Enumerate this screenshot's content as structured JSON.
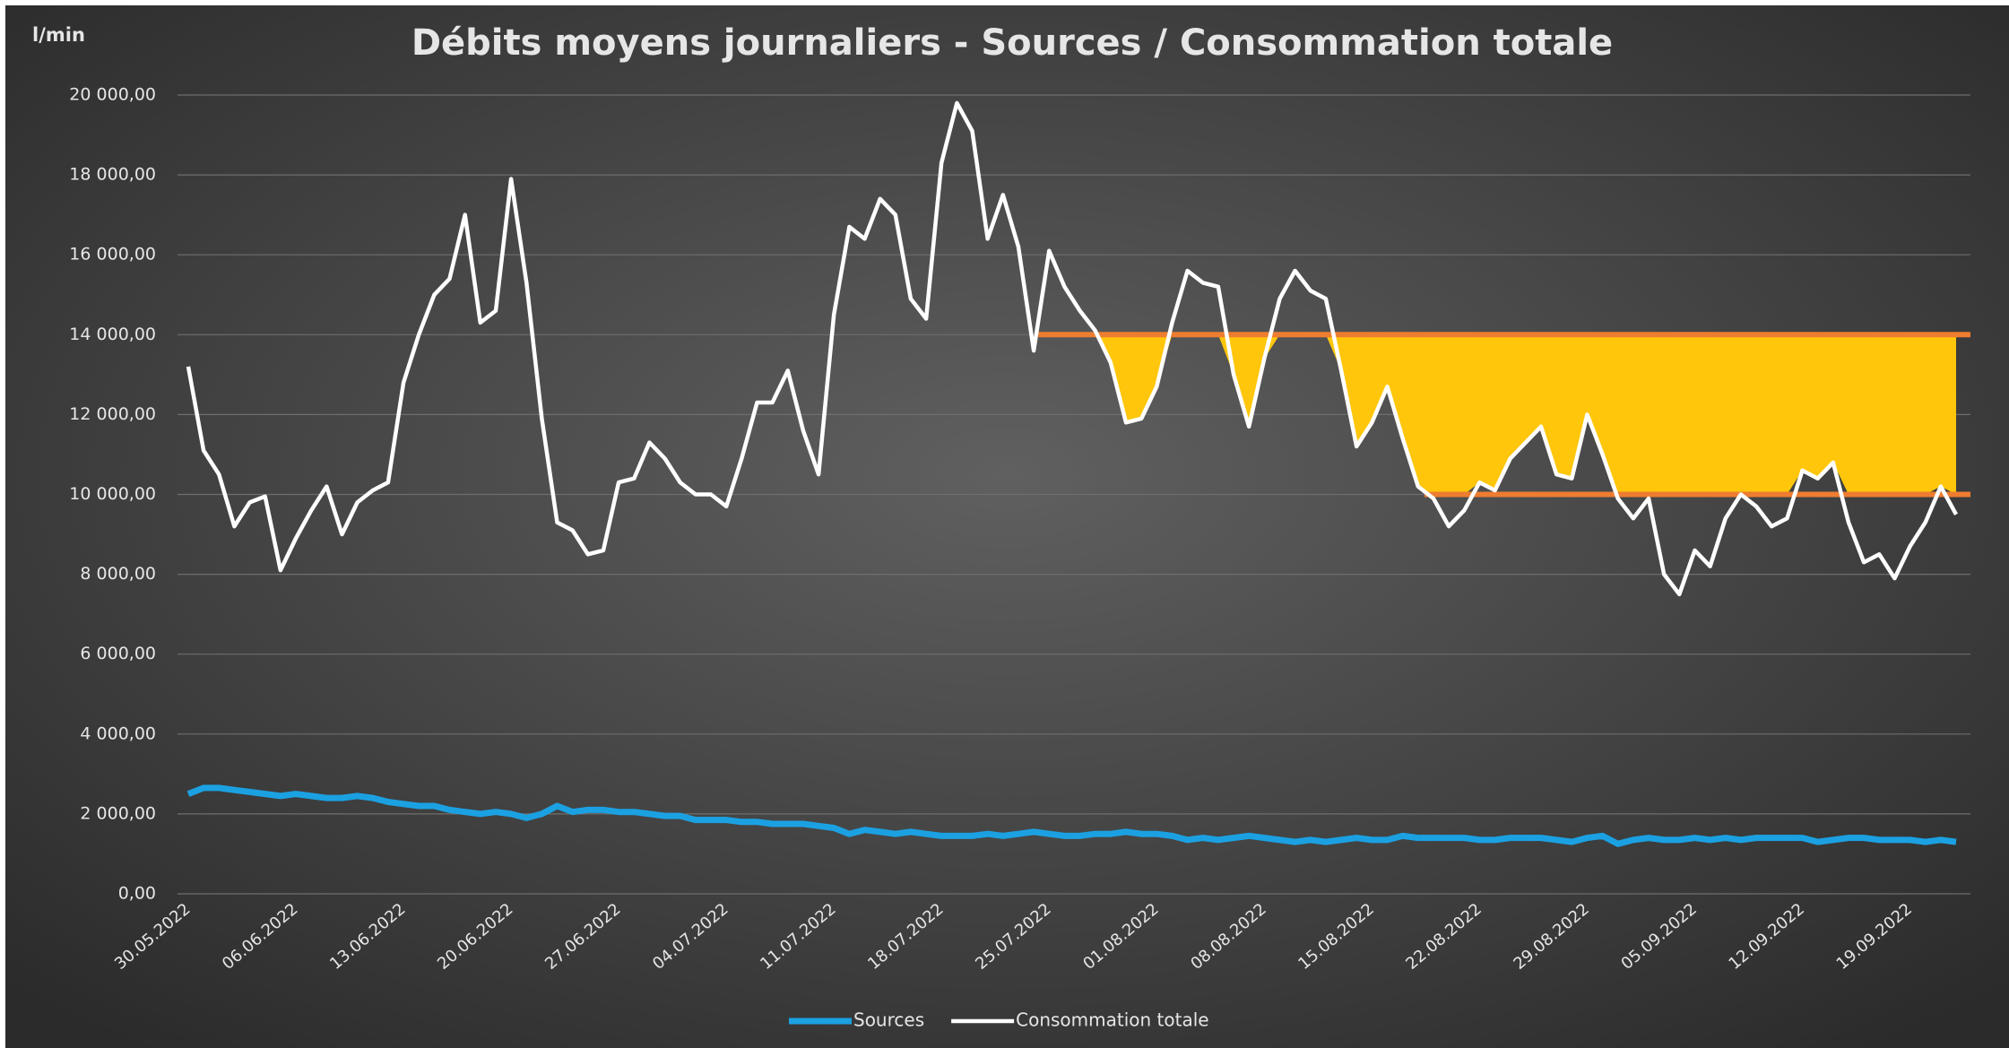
{
  "chart_data": {
    "type": "line",
    "title": "Débits moyens journaliers - Sources / Consommation totale",
    "y_axis_label": "l/min",
    "categories": [
      "30.05.2022",
      null,
      null,
      null,
      null,
      null,
      null,
      "06.06.2022",
      null,
      null,
      null,
      null,
      null,
      null,
      "13.06.2022",
      null,
      null,
      null,
      null,
      null,
      null,
      "20.06.2022",
      null,
      null,
      null,
      null,
      null,
      null,
      "27.06.2022",
      null,
      null,
      null,
      null,
      null,
      null,
      "04.07.2022",
      null,
      null,
      null,
      null,
      null,
      null,
      "11.07.2022",
      null,
      null,
      null,
      null,
      null,
      null,
      "18.07.2022",
      null,
      null,
      null,
      null,
      null,
      null,
      "25.07.2022",
      null,
      null,
      null,
      null,
      null,
      null,
      "01.08.2022",
      null,
      null,
      null,
      null,
      null,
      null,
      "08.08.2022",
      null,
      null,
      null,
      null,
      null,
      null,
      "15.08.2022",
      null,
      null,
      null,
      null,
      null,
      null,
      "22.08.2022",
      null,
      null,
      null,
      null,
      null,
      null,
      "29.08.2022",
      null,
      null,
      null,
      null,
      null,
      null,
      "05.09.2022",
      null,
      null,
      null,
      null,
      null,
      null,
      "12.09.2022",
      null,
      null,
      null,
      null,
      null,
      null,
      "19.09.2022",
      null,
      null,
      null
    ],
    "series": [
      {
        "name": "Sources",
        "color": "#1ba1e2",
        "values": [
          2500,
          2650,
          2650,
          2600,
          2550,
          2500,
          2450,
          2500,
          2450,
          2400,
          2400,
          2450,
          2400,
          2300,
          2250,
          2200,
          2200,
          2100,
          2050,
          2000,
          2050,
          2000,
          1900,
          2000,
          2200,
          2050,
          2100,
          2100,
          2050,
          2050,
          2000,
          1950,
          1950,
          1850,
          1850,
          1850,
          1800,
          1800,
          1750,
          1750,
          1750,
          1700,
          1650,
          1500,
          1600,
          1550,
          1500,
          1550,
          1500,
          1450,
          1450,
          1450,
          1500,
          1450,
          1500,
          1550,
          1500,
          1450,
          1450,
          1500,
          1500,
          1550,
          1500,
          1500,
          1450,
          1350,
          1400,
          1350,
          1400,
          1450,
          1400,
          1350,
          1300,
          1350,
          1300,
          1350,
          1400,
          1350,
          1350,
          1450,
          1400,
          1400,
          1400,
          1400,
          1350,
          1350,
          1400,
          1400,
          1400,
          1350,
          1300,
          1400,
          1450,
          1250,
          1350,
          1400,
          1350,
          1350,
          1400,
          1350,
          1400,
          1350,
          1400,
          1400,
          1400,
          1400,
          1300,
          1350,
          1400,
          1400,
          1350,
          1350,
          1350,
          1300,
          1350,
          1300
        ]
      },
      {
        "name": "Consommation totale",
        "color": "#ffffff",
        "values": [
          13200,
          11100,
          10500,
          9200,
          9800,
          9950,
          8100,
          8900,
          9600,
          10200,
          9000,
          9800,
          10100,
          10300,
          12800,
          14000,
          15000,
          15400,
          17000,
          14300,
          14600,
          17900,
          15300,
          11900,
          9300,
          9100,
          8500,
          8600,
          10300,
          10400,
          11300,
          10900,
          10300,
          10000,
          10000,
          9700,
          10900,
          12300,
          12300,
          13100,
          11600,
          10500,
          14500,
          16700,
          16400,
          17400,
          17000,
          14900,
          14400,
          18300,
          19800,
          19100,
          16400,
          17500,
          16200,
          13600,
          16100,
          15200,
          14600,
          14100,
          13300,
          11800,
          11900,
          12700,
          14300,
          15600,
          15300,
          15200,
          13000,
          11700,
          13400,
          14900,
          15600,
          15100,
          14900,
          13100,
          11200,
          11800,
          12700,
          11400,
          10200,
          9900,
          9200,
          9600,
          10300,
          10100,
          10900,
          11300,
          11700,
          10500,
          10400,
          12000,
          11000,
          9900,
          9400,
          9900,
          8000,
          7500,
          8600,
          8200,
          9400,
          10000,
          9700,
          9200,
          9400,
          10600,
          10400,
          10800,
          9300,
          8300,
          8500,
          7900,
          8700,
          9300,
          10200,
          9500
        ]
      }
    ],
    "ylim": [
      0,
      20000
    ],
    "yticks": [
      {
        "value": 0,
        "label": "0,00"
      },
      {
        "value": 2000,
        "label": "2 000,00"
      },
      {
        "value": 4000,
        "label": "4 000,00"
      },
      {
        "value": 6000,
        "label": "6 000,00"
      },
      {
        "value": 8000,
        "label": "8 000,00"
      },
      {
        "value": 10000,
        "label": "10 000,00"
      },
      {
        "value": 12000,
        "label": "12 000,00"
      },
      {
        "value": 14000,
        "label": "14 000,00"
      },
      {
        "value": 16000,
        "label": "16 000,00"
      },
      {
        "value": 18000,
        "label": "18 000,00"
      },
      {
        "value": 20000,
        "label": "20 000,00"
      }
    ],
    "grid": true,
    "legend": "bottom",
    "highlight": {
      "from": "25.07.2022",
      "upper": 14000,
      "lower": 10000,
      "fill": "#ffc60b",
      "line_color": "#ed7d31"
    }
  }
}
